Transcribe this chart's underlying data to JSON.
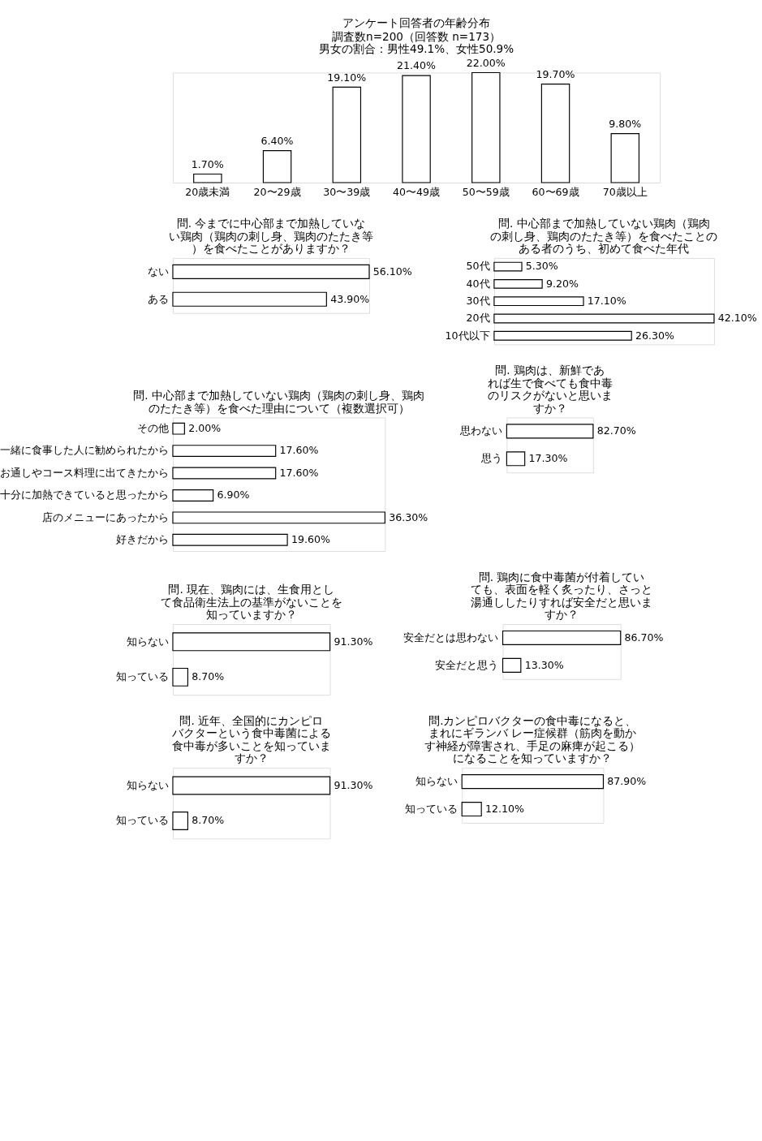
{
  "chart_data": [
    {
      "type": "bar",
      "title": "アンケート回答者の年齢分布",
      "subtitle": "調査数n=200（回答数 n=173）",
      "annotations": [
        "男女の割合：男性49.1%、女性50.9%"
      ],
      "categories": [
        "20歳未満",
        "20〜29歳",
        "30〜39歳",
        "40〜49歳",
        "50〜59歳",
        "60〜69歳",
        "70歳以上"
      ],
      "values": [
        1.7,
        6.4,
        19.1,
        21.4,
        22.0,
        19.7,
        9.8
      ],
      "value_labels": [
        "1.70%",
        "6.40%",
        "19.10%",
        "21.40%",
        "22.00%",
        "19.70%",
        "9.80%"
      ],
      "color": "#ffffff",
      "tick_labels": "x"
    },
    {
      "type": "bar",
      "orientation": "horizontal",
      "title": "問. 今までに中心部まで加熱していない鶏肉（鶏肉の刺し身、鶏肉のたたき等）を食べたことがありますか？",
      "categories": [
        "ない",
        "ある"
      ],
      "values": [
        56.1,
        43.9
      ],
      "value_labels": [
        "56.10%",
        "43.90%"
      ],
      "color": "#ffffff",
      "tick_labels": "y"
    },
    {
      "type": "bar",
      "orientation": "horizontal",
      "title": "問. 中心部まで加熱していない鶏肉（鶏肉の刺し身、鶏肉のたたき等）を食べたことのある者のうち、初めて食べた年代",
      "categories": [
        "50代",
        "40代",
        "30代",
        "20代",
        "10代以下"
      ],
      "values": [
        5.3,
        9.2,
        17.1,
        42.1,
        26.3
      ],
      "value_labels": [
        "5.30%",
        "9.20%",
        "17.10%",
        "42.10%",
        "26.30%"
      ],
      "color": "#ffffff",
      "tick_labels": "y"
    },
    {
      "type": "bar",
      "orientation": "horizontal",
      "title": "問. 中心部まで加熱していない鶏肉（鶏肉の刺し身、鶏肉のたたき等）を食べた理由について（複数選択可）",
      "categories": [
        "その他",
        "一緒に食事した人に勧められたから",
        "お通しやコース料理に出てきたから",
        "十分に加熱できていると思ったから",
        "店のメニューにあったから",
        "好きだから"
      ],
      "values": [
        2.0,
        17.6,
        17.6,
        6.9,
        36.3,
        19.6
      ],
      "value_labels": [
        "2.00%",
        "17.60%",
        "17.60%",
        "6.90%",
        "36.30%",
        "19.60%"
      ],
      "color": "#ffffff",
      "tick_labels": "y"
    },
    {
      "type": "bar",
      "orientation": "horizontal",
      "title": "問. 鶏肉は、新鮮であれば生で食べても食中毒のリスクがないと思いますか？",
      "categories": [
        "思わない",
        "思う"
      ],
      "values": [
        82.7,
        17.3
      ],
      "value_labels": [
        "82.70%",
        "17.30%"
      ],
      "color": "#ffffff",
      "tick_labels": "y"
    },
    {
      "type": "bar",
      "orientation": "horizontal",
      "title": "問. 現在、鶏肉には、生食用として食品衛生法上の基準がないことを知っていますか？",
      "categories": [
        "知らない",
        "知っている"
      ],
      "values": [
        91.3,
        8.7
      ],
      "value_labels": [
        "91.30%",
        "8.70%"
      ],
      "color": "#ffffff",
      "tick_labels": "y"
    },
    {
      "type": "bar",
      "orientation": "horizontal",
      "title": "問. 鶏肉に食中毒菌が付着していても、表面を軽く炙ったり、さっと湯通ししたりすれば安全だと思いますか？",
      "categories": [
        "安全だとは思わない",
        "安全だと思う"
      ],
      "values": [
        86.7,
        13.3
      ],
      "value_labels": [
        "86.70%",
        "13.30%"
      ],
      "color": "#ffffff",
      "tick_labels": "y"
    },
    {
      "type": "bar",
      "orientation": "horizontal",
      "title": "問. 近年、全国的にカンピロバクターという食中毒菌による食中毒が多いことを知っていますか？",
      "categories": [
        "知らない",
        "知っている"
      ],
      "values": [
        91.3,
        8.7
      ],
      "value_labels": [
        "91.30%",
        "8.70%"
      ],
      "color": "#ffffff",
      "tick_labels": "y"
    },
    {
      "type": "bar",
      "orientation": "horizontal",
      "title": "問.カンピロバクターの食中毒になると、まれにギランバ レー症候群（筋肉を動かす神経が障害され、手足の麻痺が起こる）になることを知っていますか？",
      "categories": [
        "知らない",
        "知っている"
      ],
      "values": [
        87.9,
        12.1
      ],
      "value_labels": [
        "87.90%",
        "12.10%"
      ],
      "color": "#ffffff",
      "tick_labels": "y"
    }
  ]
}
